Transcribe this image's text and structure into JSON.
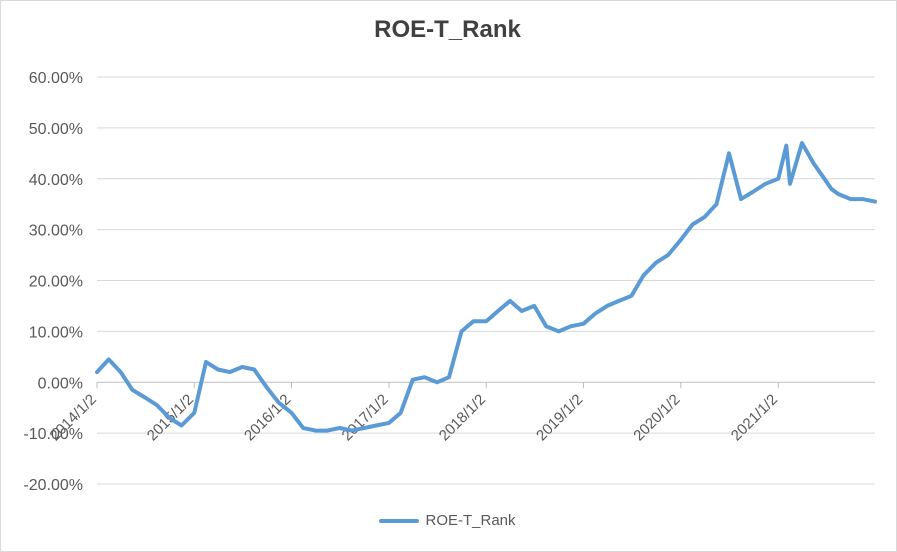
{
  "chart_data": {
    "type": "line",
    "title": "ROE-T_Rank",
    "xlabel": "",
    "ylabel": "",
    "ylim": [
      -0.2,
      0.6
    ],
    "ytick_labels": [
      "-20.00%",
      "-10.00%",
      "0.00%",
      "10.00%",
      "20.00%",
      "30.00%",
      "40.00%",
      "50.00%",
      "60.00%"
    ],
    "xtick_labels": [
      "2014/1/2",
      "2015/1/2",
      "2016/1/2",
      "2017/1/2",
      "2018/1/2",
      "2019/1/2",
      "2020/1/2",
      "2021/1/2"
    ],
    "xlim": [
      "2014/1/2",
      "2021/12/31"
    ],
    "grid": true,
    "legend_position": "bottom",
    "colors": {
      "series": "#5b9bd5"
    },
    "series": [
      {
        "name": "ROE-T_Rank",
        "x": [
          "2014/1/2",
          "2014/2/15",
          "2014/4/1",
          "2014/5/15",
          "2014/7/1",
          "2014/8/15",
          "2014/10/1",
          "2014/11/15",
          "2015/1/2",
          "2015/2/15",
          "2015/4/1",
          "2015/5/15",
          "2015/7/1",
          "2015/8/15",
          "2015/10/1",
          "2015/11/15",
          "2016/1/2",
          "2016/2/15",
          "2016/4/1",
          "2016/5/15",
          "2016/7/1",
          "2016/8/15",
          "2016/10/1",
          "2016/11/15",
          "2017/1/2",
          "2017/2/15",
          "2017/4/1",
          "2017/5/15",
          "2017/7/1",
          "2017/8/15",
          "2017/10/1",
          "2017/11/15",
          "2018/1/2",
          "2018/2/15",
          "2018/4/1",
          "2018/5/15",
          "2018/7/1",
          "2018/8/15",
          "2018/10/1",
          "2018/11/15",
          "2019/1/2",
          "2019/2/15",
          "2019/4/1",
          "2019/5/15",
          "2019/7/1",
          "2019/8/15",
          "2019/10/1",
          "2019/11/15",
          "2020/1/2",
          "2020/2/15",
          "2020/4/1",
          "2020/5/15",
          "2020/7/1",
          "2020/8/15",
          "2020/10/1",
          "2020/11/15",
          "2021/1/2",
          "2021/2/1",
          "2021/2/15",
          "2021/4/1",
          "2021/5/15",
          "2021/7/1",
          "2021/7/20",
          "2021/8/15",
          "2021/10/1",
          "2021/11/15",
          "2021/12/31"
        ],
        "values": [
          0.02,
          0.045,
          0.02,
          -0.015,
          -0.03,
          -0.045,
          -0.07,
          -0.085,
          -0.06,
          0.04,
          0.025,
          0.02,
          0.03,
          0.025,
          -0.01,
          -0.04,
          -0.06,
          -0.09,
          -0.095,
          -0.095,
          -0.09,
          -0.095,
          -0.09,
          -0.085,
          -0.08,
          -0.06,
          0.005,
          0.01,
          0.0,
          0.01,
          0.1,
          0.12,
          0.12,
          0.14,
          0.16,
          0.14,
          0.15,
          0.11,
          0.1,
          0.11,
          0.115,
          0.135,
          0.15,
          0.16,
          0.17,
          0.21,
          0.235,
          0.25,
          0.28,
          0.31,
          0.325,
          0.35,
          0.45,
          0.36,
          0.375,
          0.39,
          0.4,
          0.465,
          0.39,
          0.47,
          0.43,
          0.395,
          0.38,
          0.37,
          0.36,
          0.36,
          0.355
        ]
      }
    ]
  }
}
